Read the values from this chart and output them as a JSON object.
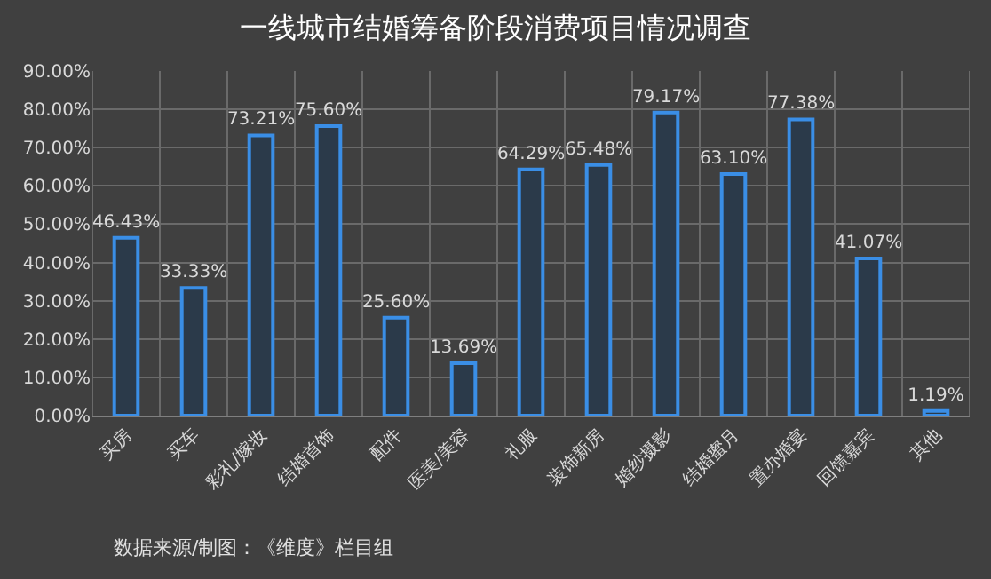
{
  "chart_data": {
    "type": "bar",
    "title": "一线城市结婚筹备阶段消费项目情况调查",
    "categories": [
      "买房",
      "买车",
      "彩礼/嫁妆",
      "结婚首饰",
      "配件",
      "医美/美容",
      "礼服",
      "装饰新房",
      "婚纱摄影",
      "结婚蜜月",
      "置办婚宴",
      "回馈嘉宾",
      "其他"
    ],
    "values": [
      46.43,
      33.33,
      73.21,
      75.6,
      25.6,
      13.69,
      64.29,
      65.48,
      79.17,
      63.1,
      77.38,
      41.07,
      1.19
    ],
    "value_labels": [
      "46.43%",
      "33.33%",
      "73.21%",
      "75.60%",
      "25.60%",
      "13.69%",
      "64.29%",
      "65.48%",
      "79.17%",
      "63.10%",
      "77.38%",
      "41.07%",
      "1.19%"
    ],
    "color": "#3a8ee6",
    "ylim": [
      0,
      90
    ],
    "yticks": [
      {
        "value": 0,
        "label": "0.00%"
      },
      {
        "value": 10,
        "label": "10.00%"
      },
      {
        "value": 20,
        "label": "20.00%"
      },
      {
        "value": 30,
        "label": "30.00%"
      },
      {
        "value": 40,
        "label": "40.00%"
      },
      {
        "value": 50,
        "label": "50.00%"
      },
      {
        "value": 60,
        "label": "60.00%"
      },
      {
        "value": 70,
        "label": "70.00%"
      },
      {
        "value": 80,
        "label": "80.00%"
      },
      {
        "value": 90,
        "label": "90.00%"
      }
    ],
    "grid": true,
    "annotations": [
      "数据来源/制图：《维度》栏目组"
    ]
  }
}
